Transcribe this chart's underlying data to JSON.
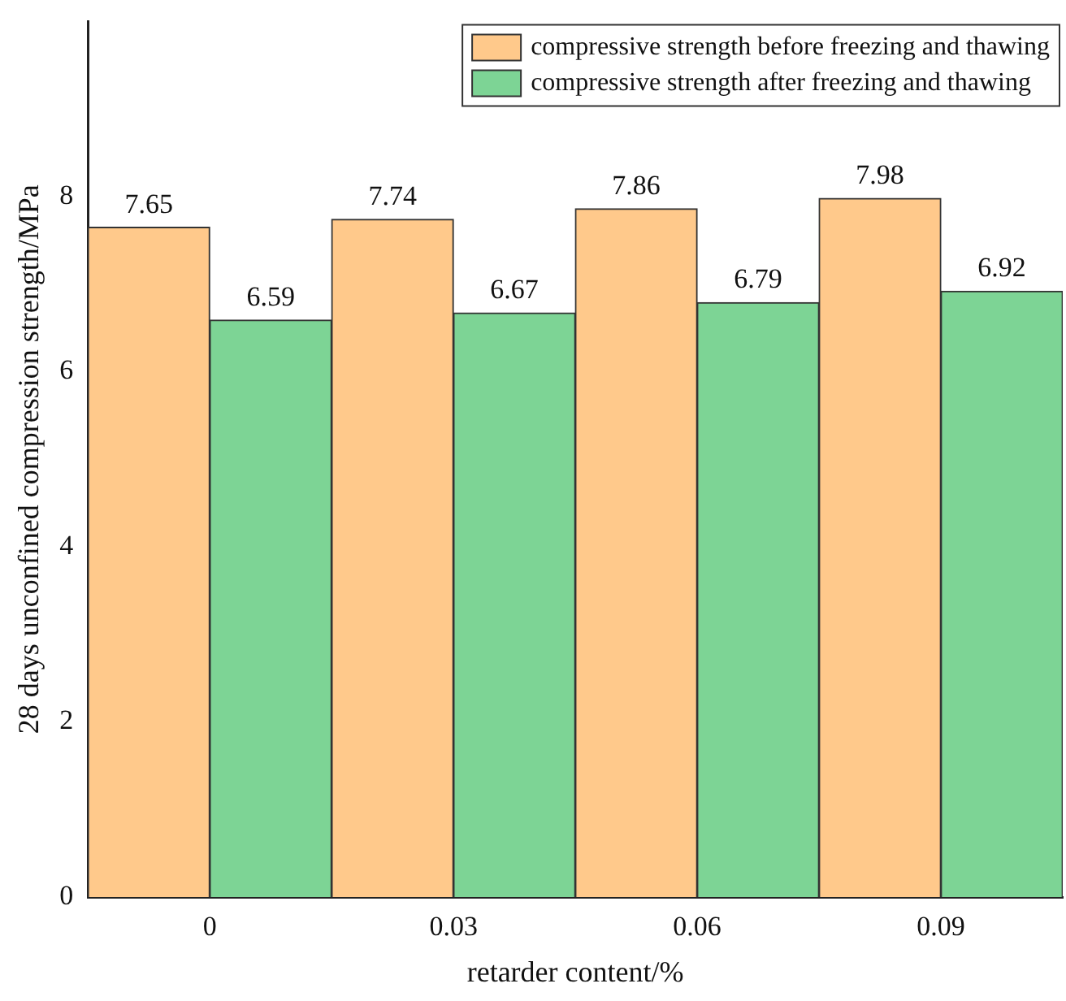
{
  "chart_data": {
    "type": "bar",
    "xlabel": "retarder content/%",
    "ylabel": "28 days unconfined compression strength/MPa",
    "categories": [
      "0",
      "0.03",
      "0.06",
      "0.09"
    ],
    "series": [
      {
        "name": "compressive strength before freezing and thawing",
        "color": "#ffc98b",
        "values": [
          7.65,
          7.74,
          7.86,
          7.98
        ]
      },
      {
        "name": "compressive strength after freezing and thawing",
        "color": "#7dd495",
        "values": [
          6.59,
          6.67,
          6.79,
          6.92
        ]
      }
    ],
    "ylim": [
      0,
      10
    ],
    "yticks": [
      0,
      2,
      4,
      6,
      8
    ],
    "grid": false,
    "legend": "top right",
    "data_labels": true
  }
}
